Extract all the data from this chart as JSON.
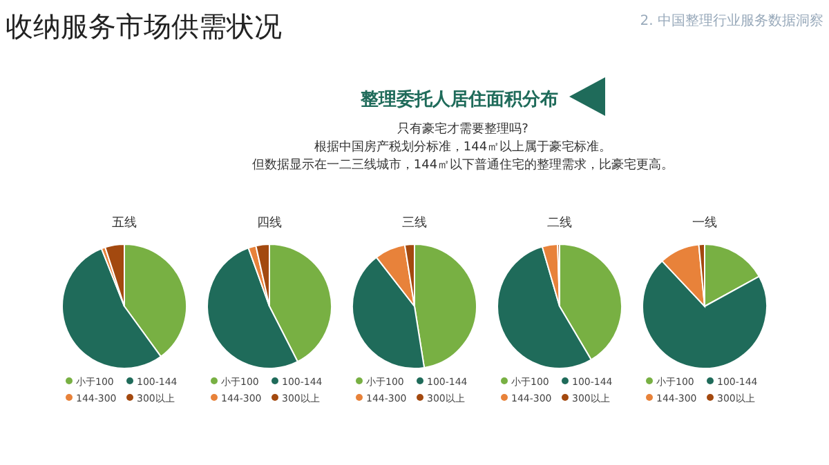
{
  "chart_data": [
    {
      "type": "other",
      "title": "收纳服务市场供需状况",
      "subtitle": "整理委托人居住面积分布",
      "annotations": [
        "2. 中国整理行业服务数据洞察",
        "只有豪宅才需要整理吗?",
        "根据中国房产税划分标准，144㎡以上属于豪宅标准。",
        "但数据显示在一二三线城市，144㎡以下普通住宅的整理需求，比豪宅更高。"
      ]
    },
    {
      "type": "pie",
      "title": "五线",
      "categories": [
        "小于100",
        "100-144",
        "144-300",
        "300以上"
      ],
      "values": [
        40,
        54,
        1,
        5
      ],
      "colors": [
        "#78b043",
        "#1f6b5a",
        "#e8823a",
        "#a3490f"
      ],
      "legend": "bottom"
    },
    {
      "type": "pie",
      "title": "四线",
      "categories": [
        "小于100",
        "100-144",
        "144-300",
        "300以上"
      ],
      "values": [
        42.5,
        52,
        2,
        3.5
      ],
      "colors": [
        "#78b043",
        "#1f6b5a",
        "#e8823a",
        "#a3490f"
      ],
      "legend": "bottom"
    },
    {
      "type": "pie",
      "title": "三线",
      "categories": [
        "小于100",
        "100-144",
        "144-300",
        "300以上"
      ],
      "values": [
        47.5,
        42,
        8,
        2.5
      ],
      "colors": [
        "#78b043",
        "#1f6b5a",
        "#e8823a",
        "#a3490f"
      ],
      "legend": "bottom"
    },
    {
      "type": "pie",
      "title": "二线",
      "categories": [
        "小于100",
        "100-144",
        "144-300",
        "300以上"
      ],
      "values": [
        41.5,
        54,
        4,
        0.5
      ],
      "colors": [
        "#78b043",
        "#1f6b5a",
        "#e8823a",
        "#a3490f"
      ],
      "legend": "bottom"
    },
    {
      "type": "pie",
      "title": "一线",
      "categories": [
        "小于100",
        "100-144",
        "144-300",
        "300以上"
      ],
      "values": [
        17,
        71,
        10.5,
        1.5
      ],
      "colors": [
        "#78b043",
        "#1f6b5a",
        "#e8823a",
        "#a3490f"
      ],
      "legend": "bottom"
    }
  ]
}
